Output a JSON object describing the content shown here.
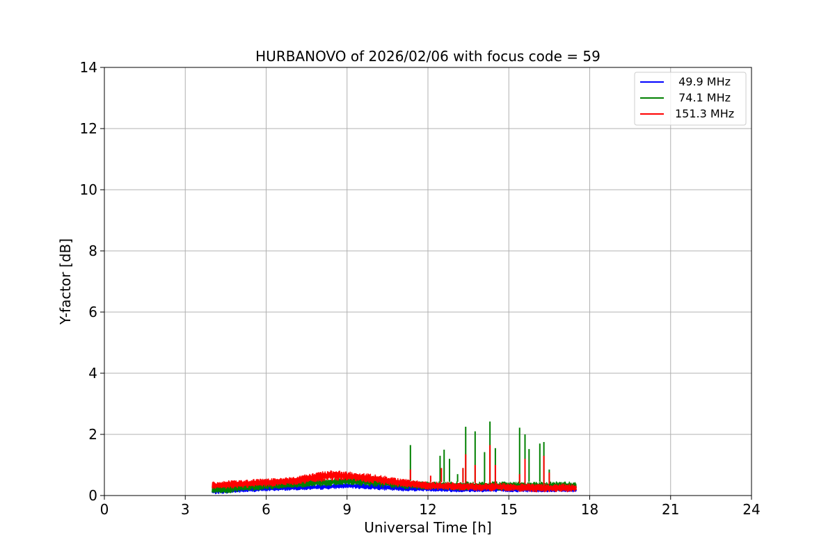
{
  "chart_data": {
    "type": "line",
    "title": "HURBANOVO of 2026/02/06 with focus code = 59",
    "xlabel": "Universal Time [h]",
    "ylabel": "Y-factor [dB]",
    "xlim": [
      0,
      24
    ],
    "ylim": [
      0,
      14
    ],
    "xticks": [
      0,
      3,
      6,
      9,
      12,
      15,
      18,
      21,
      24
    ],
    "yticks": [
      0,
      2,
      4,
      6,
      8,
      10,
      12,
      14
    ],
    "grid": true,
    "legend_position": "top-right",
    "series": [
      {
        "name": " 49.9 MHz",
        "color": "#0000ff",
        "x": [
          4.0,
          5.0,
          6.0,
          7.0,
          8.0,
          9.0,
          10.0,
          11.0,
          12.0,
          13.0,
          14.0,
          15.0,
          16.0,
          17.0,
          17.5
        ],
        "y_low": [
          0.05,
          0.1,
          0.15,
          0.18,
          0.2,
          0.25,
          0.2,
          0.15,
          0.15,
          0.12,
          0.12,
          0.12,
          0.12,
          0.12,
          0.12
        ],
        "y_high": [
          0.25,
          0.28,
          0.3,
          0.32,
          0.35,
          0.4,
          0.38,
          0.32,
          0.3,
          0.28,
          0.28,
          0.28,
          0.28,
          0.28,
          0.28
        ],
        "spikes": []
      },
      {
        "name": " 74.1 MHz",
        "color": "#008000",
        "x": [
          4.0,
          5.0,
          6.0,
          7.0,
          8.0,
          9.0,
          10.0,
          11.0,
          12.0,
          13.0,
          14.0,
          15.0,
          16.0,
          17.0,
          17.5
        ],
        "y_low": [
          0.05,
          0.12,
          0.2,
          0.25,
          0.3,
          0.35,
          0.3,
          0.22,
          0.2,
          0.18,
          0.18,
          0.18,
          0.18,
          0.18,
          0.18
        ],
        "y_high": [
          0.35,
          0.4,
          0.45,
          0.5,
          0.55,
          0.58,
          0.62,
          0.5,
          0.45,
          0.45,
          0.45,
          0.45,
          0.45,
          0.45,
          0.45
        ],
        "spikes": [
          {
            "x": 11.35,
            "y": 1.65
          },
          {
            "x": 12.45,
            "y": 1.3
          },
          {
            "x": 12.6,
            "y": 1.5
          },
          {
            "x": 12.8,
            "y": 1.2
          },
          {
            "x": 13.1,
            "y": 0.7
          },
          {
            "x": 13.3,
            "y": 0.9
          },
          {
            "x": 13.4,
            "y": 2.25
          },
          {
            "x": 13.75,
            "y": 2.1
          },
          {
            "x": 14.1,
            "y": 1.42
          },
          {
            "x": 14.3,
            "y": 2.42
          },
          {
            "x": 14.5,
            "y": 1.55
          },
          {
            "x": 15.4,
            "y": 2.22
          },
          {
            "x": 15.6,
            "y": 2.0
          },
          {
            "x": 15.75,
            "y": 1.52
          },
          {
            "x": 16.15,
            "y": 1.7
          },
          {
            "x": 16.3,
            "y": 1.75
          },
          {
            "x": 16.5,
            "y": 0.85
          }
        ]
      },
      {
        "name": "151.3 MHz",
        "color": "#ff0000",
        "x": [
          4.0,
          5.0,
          6.0,
          7.0,
          8.0,
          8.5,
          9.0,
          10.0,
          11.0,
          12.0,
          13.0,
          14.0,
          15.0,
          16.0,
          17.0,
          17.5
        ],
        "y_low": [
          0.2,
          0.25,
          0.3,
          0.35,
          0.45,
          0.5,
          0.5,
          0.4,
          0.3,
          0.2,
          0.18,
          0.15,
          0.15,
          0.12,
          0.12,
          0.12
        ],
        "y_high": [
          0.45,
          0.5,
          0.55,
          0.6,
          0.78,
          0.82,
          0.78,
          0.7,
          0.55,
          0.45,
          0.42,
          0.4,
          0.4,
          0.38,
          0.38,
          0.38
        ],
        "spikes": [
          {
            "x": 11.35,
            "y": 0.85
          },
          {
            "x": 12.1,
            "y": 0.65
          },
          {
            "x": 12.5,
            "y": 0.9
          },
          {
            "x": 13.3,
            "y": 0.9
          },
          {
            "x": 13.4,
            "y": 1.35
          },
          {
            "x": 13.75,
            "y": 1.0
          },
          {
            "x": 14.3,
            "y": 1.65
          },
          {
            "x": 14.5,
            "y": 1.0
          },
          {
            "x": 15.4,
            "y": 0.7
          },
          {
            "x": 15.6,
            "y": 1.2
          },
          {
            "x": 16.3,
            "y": 1.3
          },
          {
            "x": 16.5,
            "y": 0.75
          }
        ]
      }
    ]
  }
}
